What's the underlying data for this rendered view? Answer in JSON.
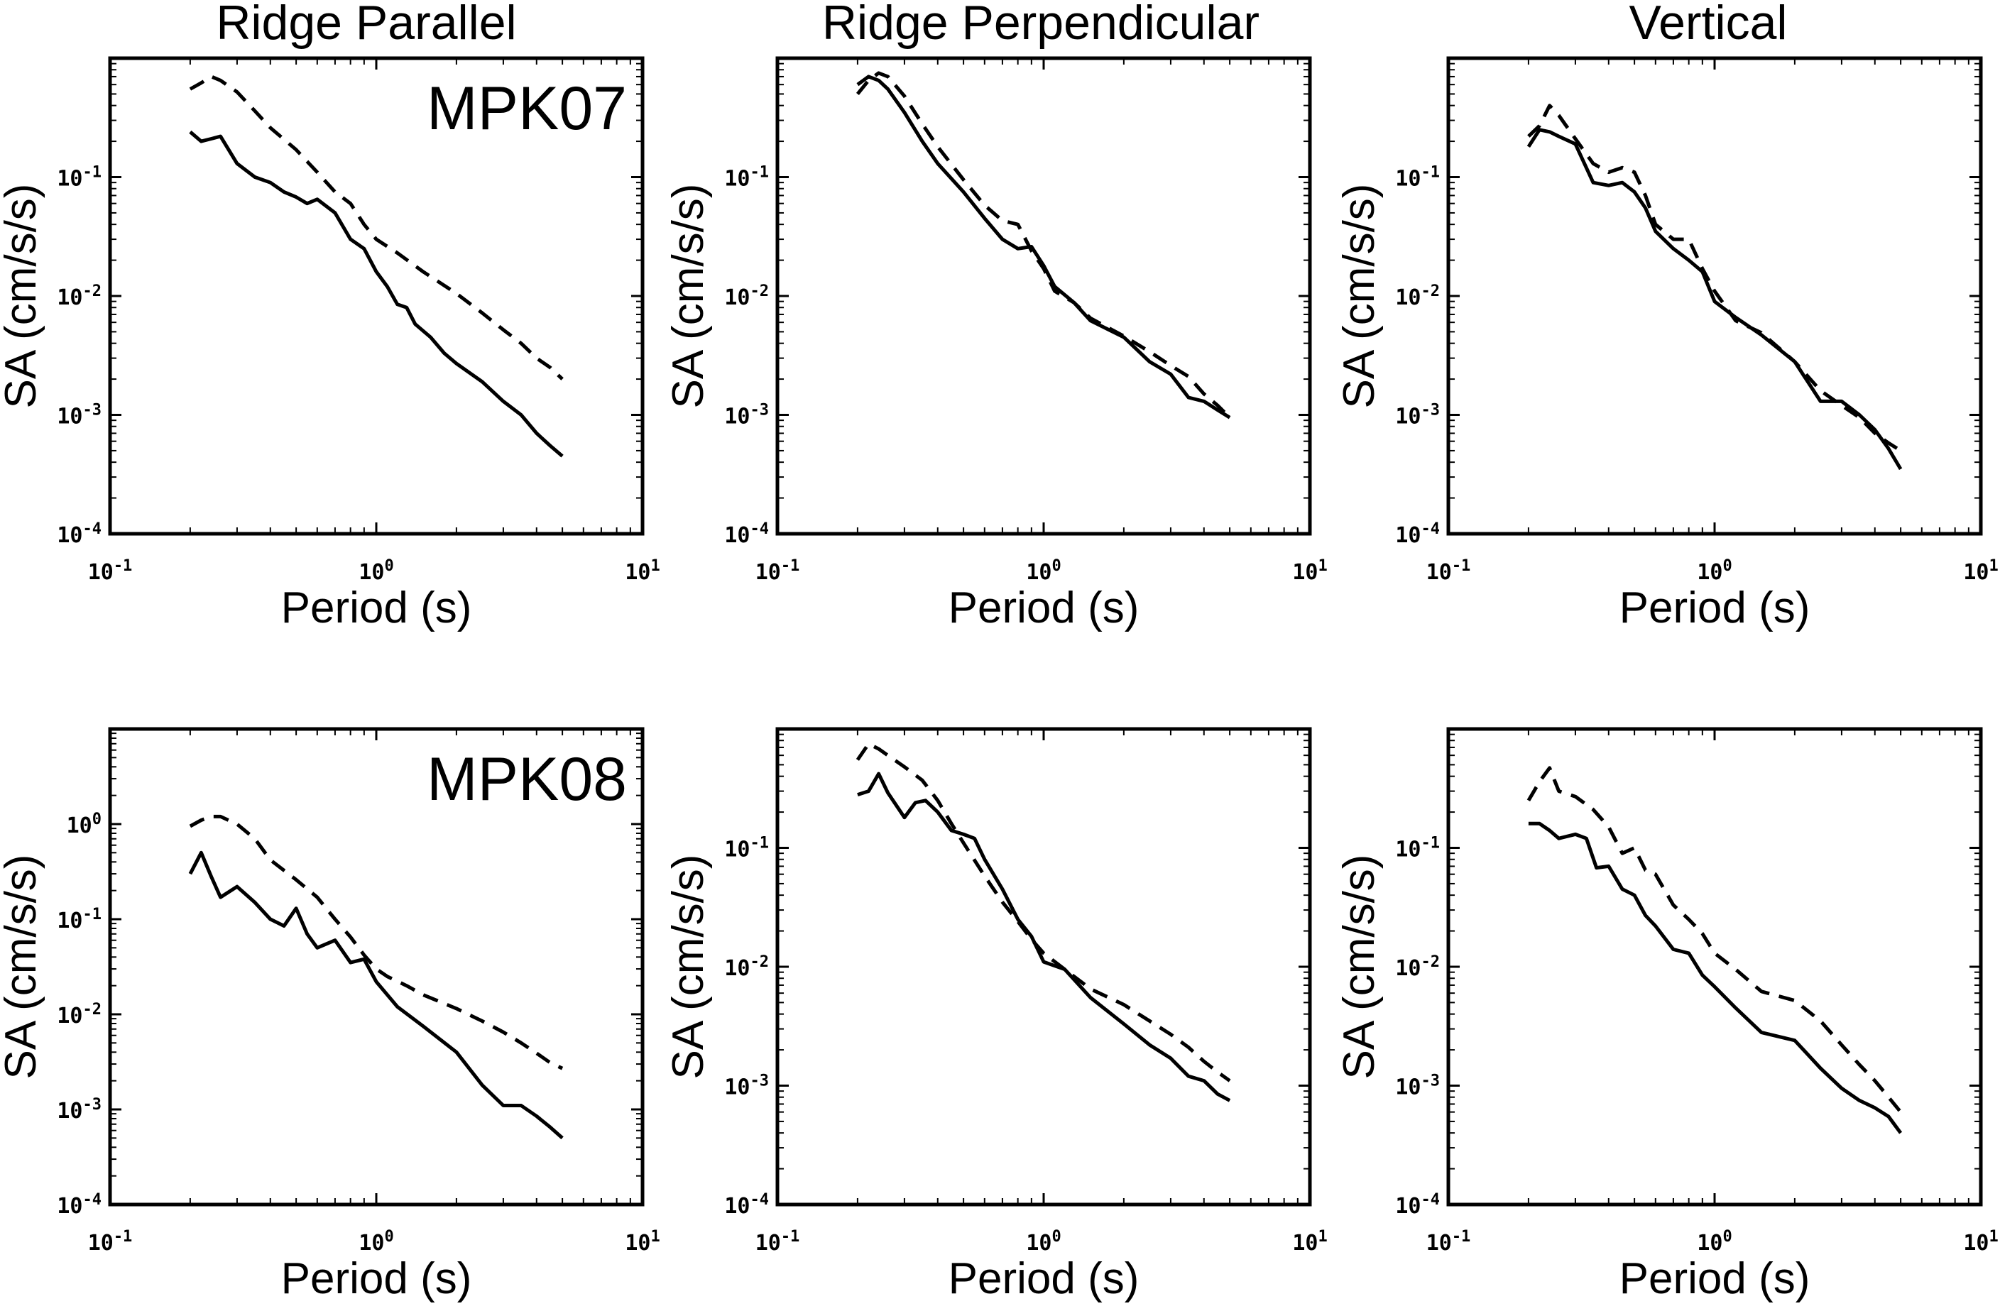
{
  "column_titles": [
    "Ridge Parallel",
    "Ridge Perpendicular",
    "Vertical"
  ],
  "stations": [
    "MPK07",
    "MPK08"
  ],
  "xlabel": "Period (s)",
  "ylabel": "SA (cm/s/s)",
  "chart_data": [
    {
      "type": "line",
      "row": 0,
      "col": 0,
      "station_label": "MPK07",
      "title": "Ridge Parallel",
      "xlabel": "Period (s)",
      "ylabel": "SA (cm/s/s)",
      "x_scale": "log",
      "y_scale": "log",
      "xlim": [
        0.1,
        10
      ],
      "ylim": [
        0.0001,
        1
      ],
      "x_ticks": [
        "10^-1",
        "10^0",
        "10^1"
      ],
      "y_ticks": [
        "10^-4",
        "10^-3",
        "10^-2",
        "10^-1"
      ],
      "series": [
        {
          "style": "solid",
          "x": [
            0.2,
            0.22,
            0.24,
            0.26,
            0.3,
            0.35,
            0.4,
            0.45,
            0.5,
            0.55,
            0.6,
            0.7,
            0.8,
            0.9,
            1.0,
            1.1,
            1.2,
            1.3,
            1.4,
            1.6,
            1.8,
            2.0,
            2.5,
            3.0,
            3.5,
            4.0,
            4.5,
            5.0
          ],
          "y": [
            0.24,
            0.2,
            0.21,
            0.22,
            0.13,
            0.1,
            0.09,
            0.075,
            0.068,
            0.06,
            0.065,
            0.05,
            0.03,
            0.025,
            0.016,
            0.012,
            0.0085,
            0.008,
            0.0058,
            0.0045,
            0.0033,
            0.0027,
            0.0019,
            0.0013,
            0.001,
            0.0007,
            0.00055,
            0.00045
          ]
        },
        {
          "style": "dashed",
          "x": [
            0.2,
            0.22,
            0.24,
            0.26,
            0.3,
            0.35,
            0.4,
            0.5,
            0.6,
            0.7,
            0.8,
            0.9,
            1.0,
            1.2,
            1.5,
            2.0,
            2.5,
            3.0,
            3.5,
            4.0,
            4.5,
            5.0
          ],
          "y": [
            0.55,
            0.62,
            0.7,
            0.65,
            0.52,
            0.36,
            0.26,
            0.17,
            0.11,
            0.075,
            0.06,
            0.04,
            0.03,
            0.023,
            0.016,
            0.0105,
            0.0072,
            0.0052,
            0.004,
            0.003,
            0.0025,
            0.002
          ]
        }
      ]
    },
    {
      "type": "line",
      "row": 0,
      "col": 1,
      "title": "Ridge Perpendicular",
      "xlabel": "Period (s)",
      "ylabel": "SA (cm/s/s)",
      "x_scale": "log",
      "y_scale": "log",
      "xlim": [
        0.1,
        10
      ],
      "ylim": [
        0.0001,
        1
      ],
      "x_ticks": [
        "10^-1",
        "10^0",
        "10^1"
      ],
      "y_ticks": [
        "10^-4",
        "10^-3",
        "10^-2",
        "10^-1"
      ],
      "series": [
        {
          "style": "solid",
          "x": [
            0.2,
            0.22,
            0.24,
            0.26,
            0.3,
            0.35,
            0.4,
            0.5,
            0.6,
            0.7,
            0.8,
            0.9,
            1.0,
            1.1,
            1.3,
            1.5,
            2.0,
            2.5,
            3.0,
            3.5,
            4.0,
            4.5,
            5.0
          ],
          "y": [
            0.6,
            0.7,
            0.65,
            0.55,
            0.35,
            0.2,
            0.13,
            0.075,
            0.045,
            0.03,
            0.025,
            0.026,
            0.018,
            0.012,
            0.0088,
            0.0062,
            0.0045,
            0.0028,
            0.0022,
            0.0014,
            0.0013,
            0.0011,
            0.00095
          ]
        },
        {
          "style": "dashed",
          "x": [
            0.2,
            0.22,
            0.24,
            0.26,
            0.3,
            0.35,
            0.4,
            0.5,
            0.6,
            0.7,
            0.8,
            0.9,
            1.0,
            1.1,
            1.3,
            1.5,
            2.0,
            2.5,
            3.0,
            3.5,
            4.0,
            4.5,
            5.0
          ],
          "y": [
            0.5,
            0.65,
            0.75,
            0.7,
            0.48,
            0.28,
            0.18,
            0.095,
            0.058,
            0.043,
            0.04,
            0.024,
            0.017,
            0.011,
            0.0088,
            0.0065,
            0.0046,
            0.0034,
            0.0026,
            0.0021,
            0.0015,
            0.0012,
            0.00095
          ]
        }
      ]
    },
    {
      "type": "line",
      "row": 0,
      "col": 2,
      "title": "Vertical",
      "xlabel": "Period (s)",
      "ylabel": "SA (cm/s/s)",
      "x_scale": "log",
      "y_scale": "log",
      "xlim": [
        0.1,
        10
      ],
      "ylim": [
        0.0001,
        1
      ],
      "x_ticks": [
        "10^-1",
        "10^0",
        "10^1"
      ],
      "y_ticks": [
        "10^-4",
        "10^-3",
        "10^-2",
        "10^-1"
      ],
      "series": [
        {
          "style": "solid",
          "x": [
            0.2,
            0.22,
            0.24,
            0.26,
            0.3,
            0.35,
            0.4,
            0.45,
            0.5,
            0.55,
            0.6,
            0.7,
            0.8,
            0.9,
            1.0,
            1.2,
            1.5,
            2.0,
            2.5,
            3.0,
            3.5,
            4.0,
            4.5,
            5.0
          ],
          "y": [
            0.18,
            0.25,
            0.24,
            0.22,
            0.19,
            0.09,
            0.085,
            0.09,
            0.075,
            0.055,
            0.035,
            0.025,
            0.02,
            0.016,
            0.009,
            0.0066,
            0.0047,
            0.0028,
            0.0013,
            0.0013,
            0.001,
            0.00075,
            0.00052,
            0.00035
          ]
        },
        {
          "style": "dashed",
          "x": [
            0.2,
            0.22,
            0.24,
            0.26,
            0.3,
            0.35,
            0.4,
            0.45,
            0.5,
            0.55,
            0.6,
            0.7,
            0.8,
            0.9,
            1.0,
            1.2,
            1.5,
            2.0,
            2.5,
            3.0,
            3.5,
            4.0,
            4.5,
            5.0
          ],
          "y": [
            0.22,
            0.27,
            0.4,
            0.33,
            0.21,
            0.13,
            0.11,
            0.12,
            0.11,
            0.07,
            0.04,
            0.03,
            0.03,
            0.017,
            0.011,
            0.0062,
            0.0049,
            0.0028,
            0.0016,
            0.0012,
            0.00095,
            0.0007,
            0.00058,
            0.0005
          ]
        }
      ]
    },
    {
      "type": "line",
      "row": 1,
      "col": 0,
      "station_label": "MPK08",
      "title": "",
      "xlabel": "Period (s)",
      "ylabel": "SA (cm/s/s)",
      "x_scale": "log",
      "y_scale": "log",
      "xlim": [
        0.1,
        10
      ],
      "ylim": [
        0.0001,
        10
      ],
      "x_ticks": [
        "10^-1",
        "10^0",
        "10^1"
      ],
      "y_ticks": [
        "10^-4",
        "10^-3",
        "10^-2",
        "10^-1",
        "10^0"
      ],
      "series": [
        {
          "style": "solid",
          "x": [
            0.2,
            0.22,
            0.24,
            0.26,
            0.3,
            0.35,
            0.4,
            0.45,
            0.5,
            0.55,
            0.6,
            0.7,
            0.8,
            0.9,
            1.0,
            1.2,
            1.5,
            2.0,
            2.5,
            3.0,
            3.5,
            4.0,
            4.5,
            5.0
          ],
          "y": [
            0.3,
            0.5,
            0.28,
            0.17,
            0.22,
            0.15,
            0.1,
            0.085,
            0.13,
            0.07,
            0.05,
            0.06,
            0.035,
            0.038,
            0.022,
            0.012,
            0.0075,
            0.004,
            0.0018,
            0.0011,
            0.0011,
            0.00085,
            0.00065,
            0.0005
          ]
        },
        {
          "style": "dashed",
          "x": [
            0.2,
            0.22,
            0.24,
            0.26,
            0.3,
            0.35,
            0.4,
            0.5,
            0.6,
            0.7,
            0.8,
            0.9,
            1.0,
            1.1,
            1.3,
            1.5,
            2.0,
            2.5,
            3.0,
            3.5,
            4.0,
            4.5,
            5.0
          ],
          "y": [
            0.95,
            1.1,
            1.2,
            1.2,
            1.0,
            0.7,
            0.42,
            0.26,
            0.17,
            0.1,
            0.065,
            0.042,
            0.03,
            0.025,
            0.02,
            0.016,
            0.0115,
            0.0085,
            0.0065,
            0.005,
            0.0039,
            0.0031,
            0.0027
          ]
        }
      ]
    },
    {
      "type": "line",
      "row": 1,
      "col": 1,
      "title": "",
      "xlabel": "Period (s)",
      "ylabel": "SA (cm/s/s)",
      "x_scale": "log",
      "y_scale": "log",
      "xlim": [
        0.1,
        10
      ],
      "ylim": [
        0.0001,
        1
      ],
      "x_ticks": [
        "10^-1",
        "10^0",
        "10^1"
      ],
      "y_ticks": [
        "10^-4",
        "10^-3",
        "10^-2",
        "10^-1"
      ],
      "series": [
        {
          "style": "solid",
          "x": [
            0.2,
            0.22,
            0.24,
            0.26,
            0.3,
            0.33,
            0.36,
            0.4,
            0.45,
            0.5,
            0.55,
            0.6,
            0.7,
            0.8,
            0.9,
            1.0,
            1.2,
            1.5,
            2.0,
            2.5,
            3.0,
            3.5,
            4.0,
            4.5,
            5.0
          ],
          "y": [
            0.28,
            0.3,
            0.42,
            0.29,
            0.18,
            0.24,
            0.25,
            0.2,
            0.14,
            0.13,
            0.12,
            0.08,
            0.045,
            0.025,
            0.018,
            0.011,
            0.0095,
            0.0055,
            0.0033,
            0.0022,
            0.0017,
            0.0012,
            0.0011,
            0.00085,
            0.00075
          ]
        },
        {
          "style": "dashed",
          "x": [
            0.2,
            0.22,
            0.24,
            0.26,
            0.3,
            0.35,
            0.4,
            0.45,
            0.5,
            0.6,
            0.7,
            0.8,
            0.9,
            1.0,
            1.2,
            1.5,
            2.0,
            2.5,
            3.0,
            3.5,
            4.0,
            4.5,
            5.0
          ],
          "y": [
            0.55,
            0.75,
            0.68,
            0.6,
            0.48,
            0.37,
            0.25,
            0.16,
            0.11,
            0.058,
            0.035,
            0.024,
            0.017,
            0.013,
            0.0095,
            0.0065,
            0.0048,
            0.0035,
            0.0027,
            0.0021,
            0.0016,
            0.0013,
            0.0011
          ]
        }
      ]
    },
    {
      "type": "line",
      "row": 1,
      "col": 2,
      "title": "",
      "xlabel": "Period (s)",
      "ylabel": "SA (cm/s/s)",
      "x_scale": "log",
      "y_scale": "log",
      "xlim": [
        0.1,
        10
      ],
      "ylim": [
        0.0001,
        1
      ],
      "x_ticks": [
        "10^-1",
        "10^0",
        "10^1"
      ],
      "y_ticks": [
        "10^-4",
        "10^-3",
        "10^-2",
        "10^-1"
      ],
      "series": [
        {
          "style": "solid",
          "x": [
            0.2,
            0.22,
            0.24,
            0.26,
            0.3,
            0.33,
            0.36,
            0.4,
            0.45,
            0.5,
            0.55,
            0.6,
            0.7,
            0.8,
            0.9,
            1.0,
            1.2,
            1.5,
            2.0,
            2.5,
            3.0,
            3.5,
            4.0,
            4.5,
            5.0
          ],
          "y": [
            0.16,
            0.16,
            0.14,
            0.12,
            0.13,
            0.12,
            0.068,
            0.07,
            0.045,
            0.04,
            0.027,
            0.022,
            0.014,
            0.013,
            0.0085,
            0.0068,
            0.0045,
            0.0028,
            0.0024,
            0.0014,
            0.00095,
            0.00075,
            0.00065,
            0.00055,
            0.0004
          ]
        },
        {
          "style": "dashed",
          "x": [
            0.2,
            0.22,
            0.24,
            0.26,
            0.3,
            0.35,
            0.4,
            0.45,
            0.5,
            0.55,
            0.6,
            0.7,
            0.8,
            0.9,
            1.0,
            1.2,
            1.5,
            2.0,
            2.5,
            3.0,
            3.5,
            4.0,
            4.5,
            5.0
          ],
          "y": [
            0.25,
            0.36,
            0.47,
            0.3,
            0.27,
            0.21,
            0.15,
            0.09,
            0.1,
            0.065,
            0.06,
            0.033,
            0.025,
            0.019,
            0.013,
            0.0095,
            0.0062,
            0.0052,
            0.0035,
            0.0022,
            0.0015,
            0.0011,
            0.0008,
            0.0006
          ]
        }
      ]
    }
  ]
}
